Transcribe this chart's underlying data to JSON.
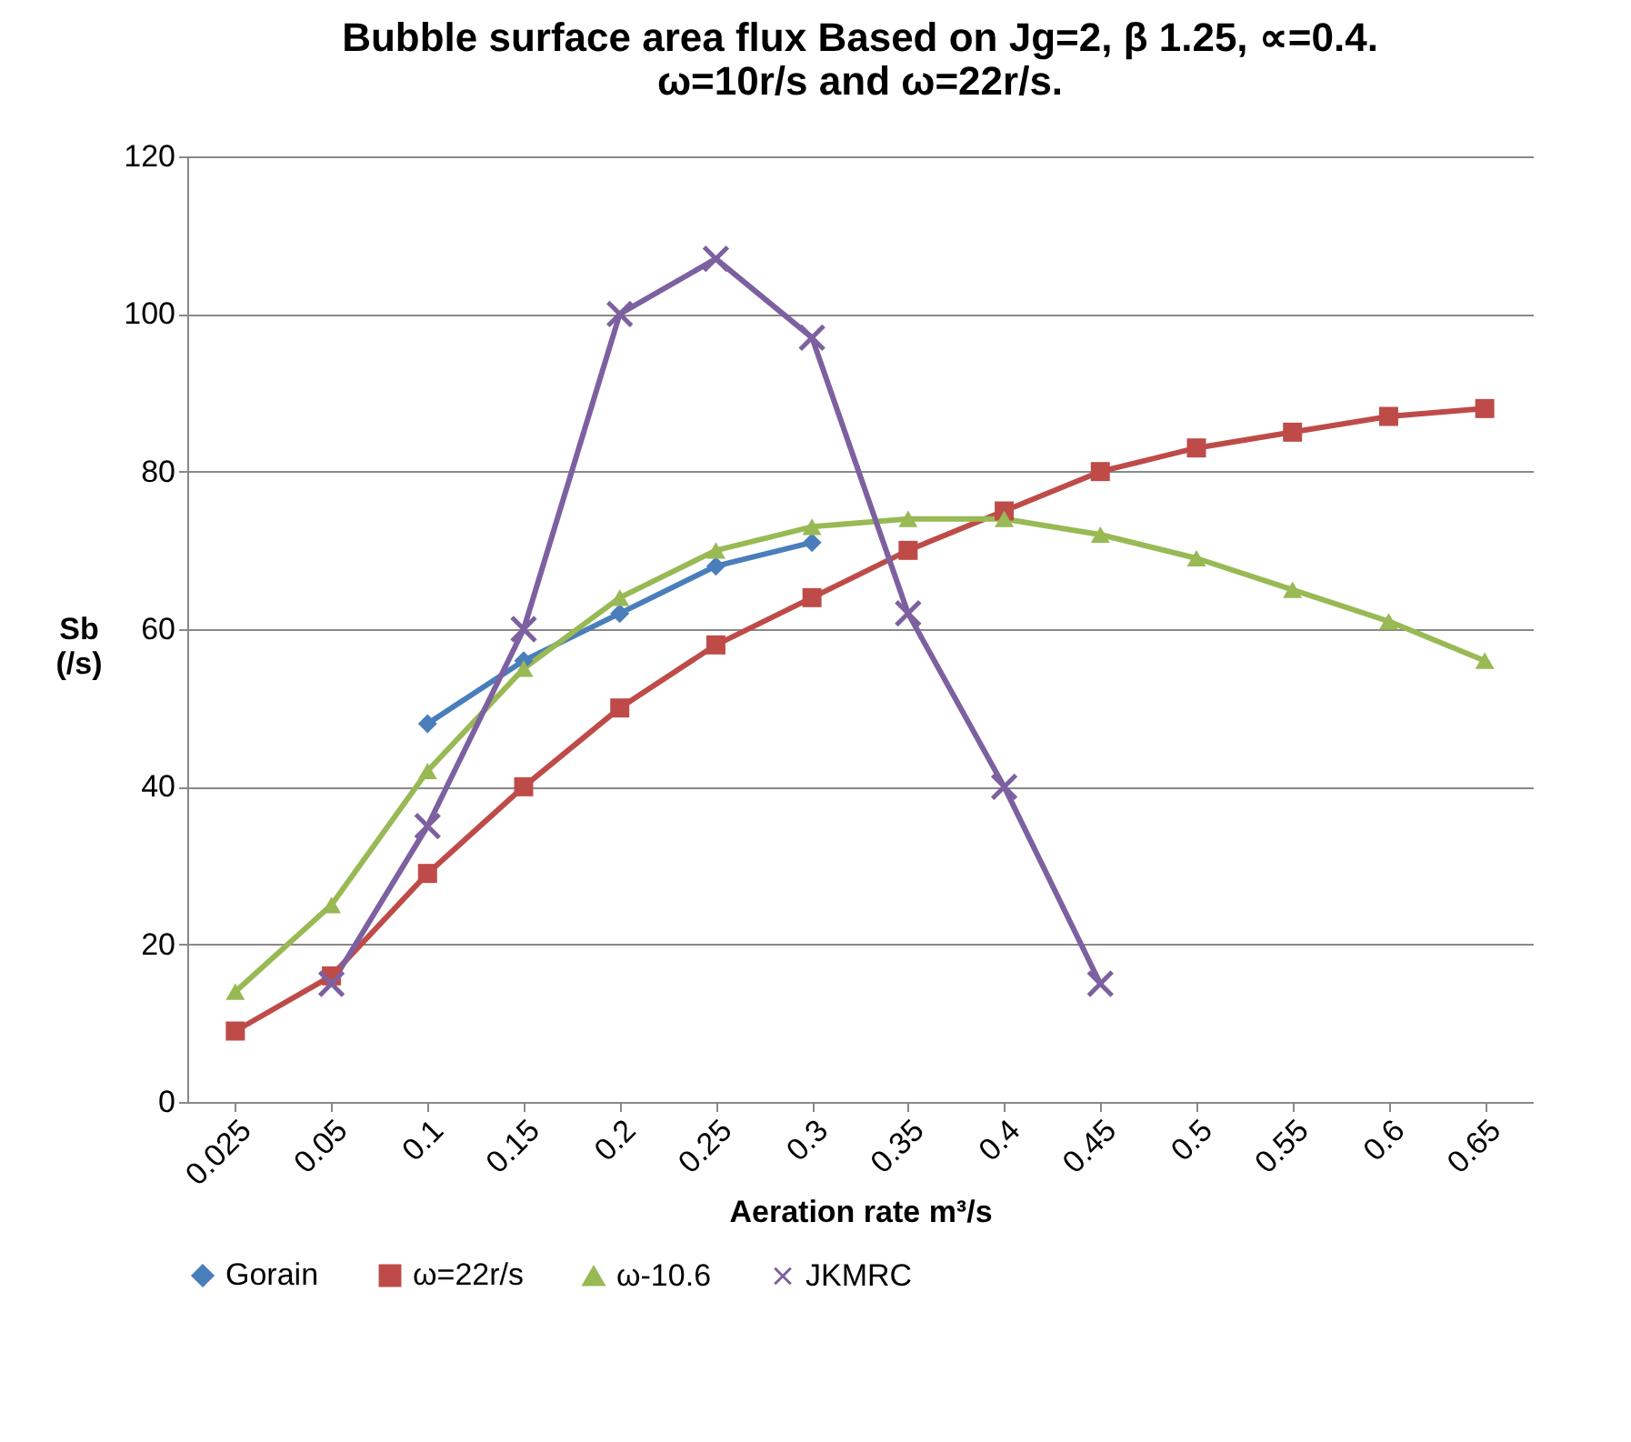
{
  "chart_data": {
    "type": "line",
    "title": "Bubble surface area flux Based on Jg=2, β 1.25, ∝=0.4.\nω=10r/s  and ω=22r/s.",
    "xlabel": "Aeration rate m³/s",
    "ylabel": "Sb\n(/s)",
    "categories": [
      "0.025",
      "0.05",
      "0.1",
      "0.15",
      "0.2",
      "0.25",
      "0.3",
      "0.35",
      "0.4",
      "0.45",
      "0.5",
      "0.55",
      "0.6",
      "0.65"
    ],
    "series": [
      {
        "name": "Gorain",
        "color": "#4a7ebb",
        "marker": "diamond",
        "values": [
          null,
          null,
          48,
          56,
          62,
          68,
          71,
          null,
          null,
          null,
          null,
          null,
          null,
          null
        ]
      },
      {
        "name": "ω=22r/s",
        "color": "#be4b48",
        "marker": "square",
        "values": [
          9,
          16,
          29,
          40,
          50,
          58,
          64,
          70,
          75,
          80,
          83,
          85,
          87,
          88
        ]
      },
      {
        "name": "ω-10.6",
        "color": "#98b954",
        "marker": "triangle",
        "values": [
          14,
          25,
          42,
          55,
          64,
          70,
          73,
          74,
          74,
          72,
          69,
          65,
          61,
          56
        ]
      },
      {
        "name": "JKMRC",
        "color": "#7d60a0",
        "marker": "cross",
        "values": [
          null,
          15,
          35,
          60,
          100,
          107,
          97,
          62,
          40,
          15,
          null,
          null,
          null,
          null
        ]
      }
    ],
    "ylim": [
      0,
      120
    ],
    "yticks": [
      0,
      20,
      40,
      60,
      80,
      100,
      120
    ],
    "grid": "y",
    "legend": "bottom"
  }
}
